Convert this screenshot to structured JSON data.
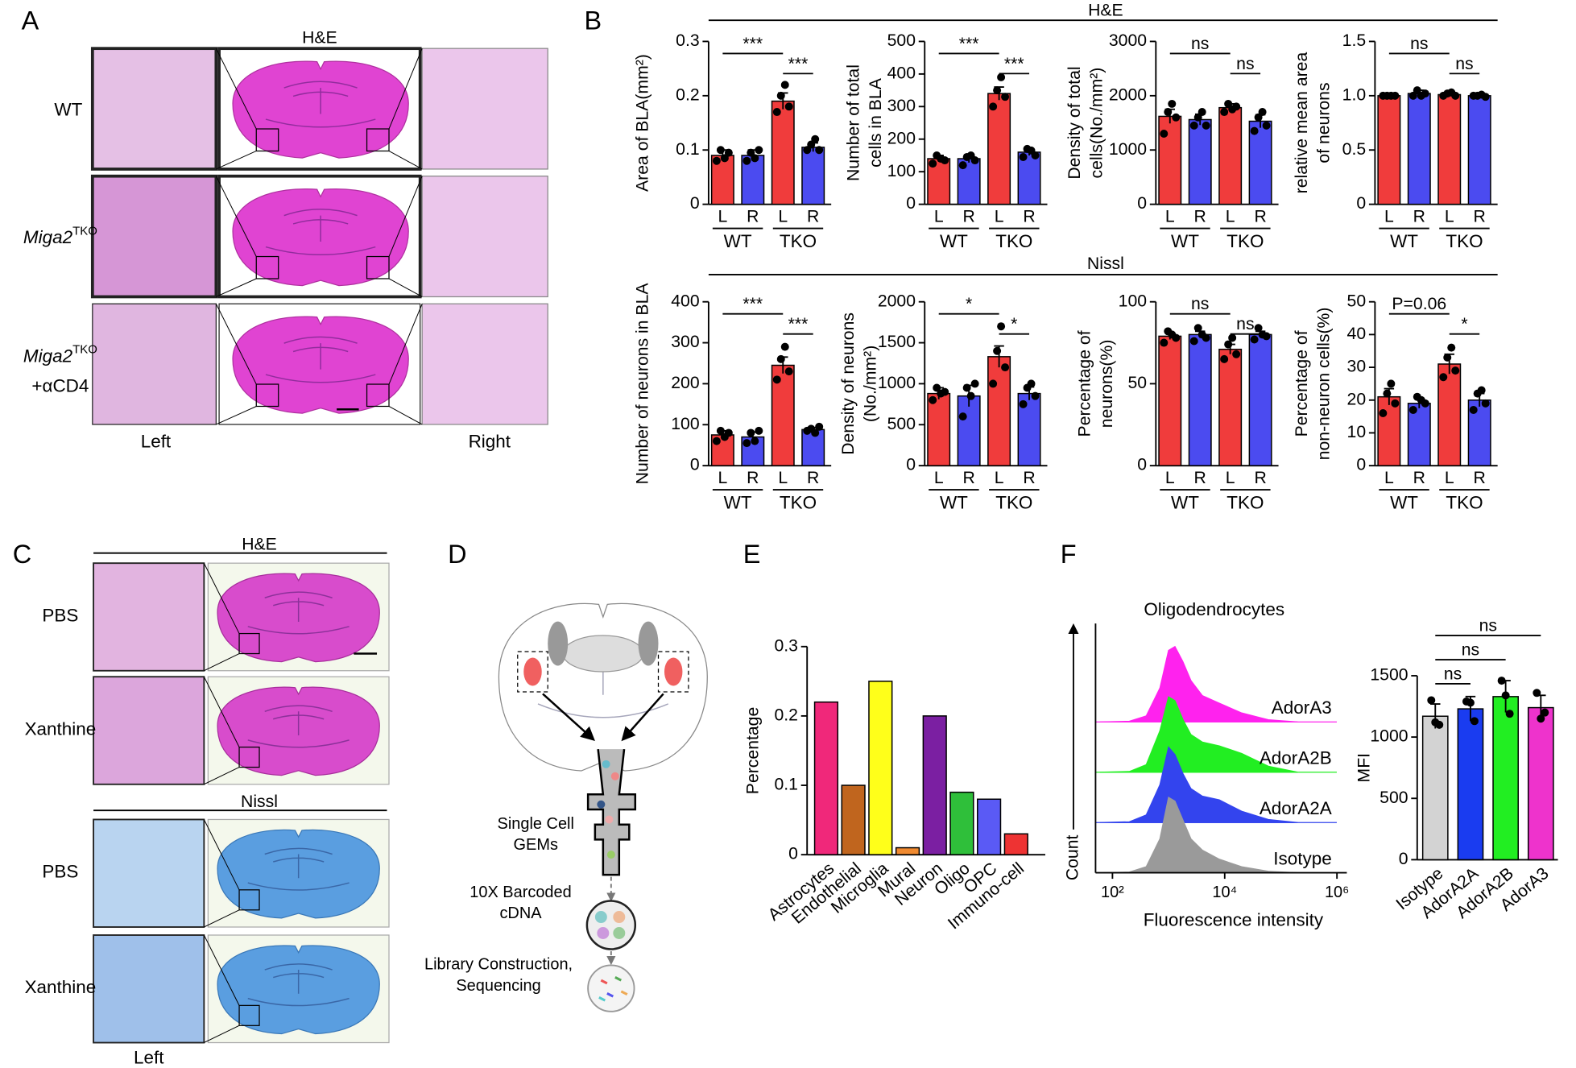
{
  "figure": {
    "panel_labels": [
      "A",
      "B",
      "C",
      "D",
      "E",
      "F"
    ],
    "A": {
      "title": "H&E",
      "rows": [
        {
          "label": "WT"
        },
        {
          "label": "Miga2",
          "sup": "TKO"
        },
        {
          "label": "Miga2",
          "sup": "TKO",
          "line2": "+αCD4"
        }
      ],
      "columns": [
        "Left",
        "Right"
      ]
    },
    "B": {
      "headers": [
        "H&E",
        "Nissl"
      ]
    },
    "C": {
      "sections": [
        {
          "title": "H&E",
          "rows": [
            "PBS",
            "Xanthine"
          ]
        },
        {
          "title": "Nissl",
          "rows": [
            "PBS",
            "Xanthine"
          ]
        }
      ],
      "column": "Left"
    },
    "D": {
      "steps": [
        [
          "Single Cell",
          "GEMs"
        ],
        [
          "10X Barcoded",
          "cDNA"
        ],
        [
          "Library Construction,",
          "Sequencing"
        ]
      ]
    }
  },
  "chart_data": [
    {
      "type": "bar",
      "ylabel": [
        "Area of BLA(mm²)"
      ],
      "categories": [
        "L",
        "R",
        "L",
        "R"
      ],
      "groups": [
        "WT",
        "TKO"
      ],
      "colors": [
        "#f03c3c",
        "#4b4bf0",
        "#f03c3c",
        "#4b4bf0"
      ],
      "values": [
        0.09,
        0.09,
        0.19,
        0.105
      ],
      "errors": [
        0.01,
        0.01,
        0.015,
        0.008
      ],
      "points": [
        [
          0.08,
          0.1,
          0.085,
          0.095
        ],
        [
          0.08,
          0.095,
          0.085,
          0.1
        ],
        [
          0.17,
          0.2,
          0.22,
          0.18
        ],
        [
          0.1,
          0.11,
          0.12,
          0.1
        ]
      ],
      "ylim": [
        0,
        0.3
      ],
      "yticks": [
        0,
        0.1,
        0.2,
        0.3
      ],
      "annotations": [
        "***",
        "***"
      ]
    },
    {
      "type": "bar",
      "ylabel": [
        "Number of total",
        "cells in BLA"
      ],
      "categories": [
        "L",
        "R",
        "L",
        "R"
      ],
      "groups": [
        "WT",
        "TKO"
      ],
      "colors": [
        "#f03c3c",
        "#4b4bf0",
        "#f03c3c",
        "#4b4bf0"
      ],
      "values": [
        140,
        140,
        340,
        160
      ],
      "errors": [
        10,
        12,
        20,
        10
      ],
      "points": [
        [
          125,
          150,
          140,
          135
        ],
        [
          120,
          145,
          150,
          135
        ],
        [
          300,
          350,
          390,
          330
        ],
        [
          145,
          170,
          165,
          150
        ]
      ],
      "ylim": [
        0,
        500
      ],
      "yticks": [
        0,
        100,
        200,
        300,
        400,
        500
      ],
      "annotations": [
        "***",
        "***"
      ]
    },
    {
      "type": "bar",
      "ylabel": [
        "Density of total",
        "cells(No./mm²)"
      ],
      "categories": [
        "L",
        "R",
        "L",
        "R"
      ],
      "groups": [
        "WT",
        "TKO"
      ],
      "colors": [
        "#f03c3c",
        "#4b4bf0",
        "#f03c3c",
        "#4b4bf0"
      ],
      "values": [
        1620,
        1560,
        1780,
        1530
      ],
      "errors": [
        130,
        100,
        70,
        120
      ],
      "points": [
        [
          1300,
          1700,
          1850,
          1600
        ],
        [
          1450,
          1600,
          1700,
          1450
        ],
        [
          1700,
          1850,
          1750,
          1800
        ],
        [
          1350,
          1600,
          1700,
          1450
        ]
      ],
      "ylim": [
        0,
        3000
      ],
      "yticks": [
        0,
        1000,
        2000,
        3000
      ],
      "annotations": [
        "ns",
        "ns"
      ]
    },
    {
      "type": "bar",
      "ylabel": [
        "relative mean area",
        "of neurons"
      ],
      "categories": [
        "L",
        "R",
        "L",
        "R"
      ],
      "groups": [
        "WT",
        "TKO"
      ],
      "colors": [
        "#f03c3c",
        "#4b4bf0",
        "#f03c3c",
        "#4b4bf0"
      ],
      "values": [
        1,
        1.02,
        1.01,
        1
      ],
      "errors": [
        0.01,
        0.03,
        0.02,
        0.01
      ],
      "points": [
        [
          1,
          1,
          1,
          1
        ],
        [
          1,
          1.05,
          1,
          1.02
        ],
        [
          1,
          1.02,
          1.03,
          1
        ],
        [
          1,
          1,
          1.01,
          0.99
        ]
      ],
      "ylim": [
        0,
        1.5
      ],
      "yticks": [
        0,
        0.5,
        {
          "value": 1,
          "label": "1.0"
        },
        1.5
      ],
      "annotations": [
        "ns",
        "ns"
      ]
    },
    {
      "type": "bar",
      "ylabel": [
        "Number of neurons in BLA"
      ],
      "categories": [
        "L",
        "R",
        "L",
        "R"
      ],
      "groups": [
        "WT",
        "TKO"
      ],
      "colors": [
        "#f03c3c",
        "#4b4bf0",
        "#f03c3c",
        "#4b4bf0"
      ],
      "values": [
        75,
        70,
        245,
        88
      ],
      "errors": [
        10,
        12,
        20,
        5
      ],
      "points": [
        [
          60,
          85,
          70,
          80
        ],
        [
          55,
          80,
          60,
          85
        ],
        [
          210,
          260,
          290,
          230
        ],
        [
          85,
          90,
          80,
          95
        ]
      ],
      "ylim": [
        0,
        400
      ],
      "yticks": [
        0,
        100,
        200,
        300,
        400
      ],
      "annotations": [
        "***",
        "***"
      ]
    },
    {
      "type": "bar",
      "ylabel": [
        "Density of neurons",
        "(No./mm²)"
      ],
      "categories": [
        "L",
        "R",
        "L",
        "R"
      ],
      "groups": [
        "WT",
        "TKO"
      ],
      "colors": [
        "#f03c3c",
        "#4b4bf0",
        "#f03c3c",
        "#4b4bf0"
      ],
      "values": [
        880,
        850,
        1330,
        880
      ],
      "errors": [
        70,
        130,
        130,
        80
      ],
      "points": [
        [
          800,
          950,
          880,
          900
        ],
        [
          600,
          950,
          850,
          1000
        ],
        [
          1000,
          1400,
          1700,
          1200
        ],
        [
          750,
          950,
          1000,
          850
        ]
      ],
      "ylim": [
        0,
        2000
      ],
      "yticks": [
        0,
        500,
        1000,
        1500,
        2000
      ],
      "annotations": [
        "*",
        "*"
      ]
    },
    {
      "type": "bar",
      "ylabel": [
        "Percentage of",
        "neurons(%)"
      ],
      "categories": [
        "L",
        "R",
        "L",
        "R"
      ],
      "groups": [
        "WT",
        "TKO"
      ],
      "colors": [
        "#f03c3c",
        "#4b4bf0",
        "#f03c3c",
        "#4b4bf0"
      ],
      "values": [
        79,
        80,
        71,
        80
      ],
      "errors": [
        2,
        2,
        3,
        2
      ],
      "points": [
        [
          75,
          82,
          80,
          78
        ],
        [
          76,
          84,
          80,
          78
        ],
        [
          65,
          74,
          78,
          68
        ],
        [
          77,
          84,
          80,
          79
        ]
      ],
      "ylim": [
        0,
        100
      ],
      "yticks": [
        0,
        50,
        100
      ],
      "annotations": [
        "ns",
        "ns"
      ]
    },
    {
      "type": "bar",
      "ylabel": [
        "Percentage of",
        "non-neuron cells(%)"
      ],
      "categories": [
        "L",
        "R",
        "L",
        "R"
      ],
      "groups": [
        "WT",
        "TKO"
      ],
      "colors": [
        "#f03c3c",
        "#4b4bf0",
        "#f03c3c",
        "#4b4bf0"
      ],
      "values": [
        21,
        19,
        31,
        20
      ],
      "errors": [
        2.5,
        1.5,
        3,
        2
      ],
      "points": [
        [
          16,
          22,
          25,
          19
        ],
        [
          17,
          21,
          20,
          19
        ],
        [
          27,
          33,
          36,
          29
        ],
        [
          17,
          22,
          23,
          19
        ]
      ],
      "ylim": [
        0,
        50
      ],
      "yticks": [
        0,
        10,
        20,
        30,
        40,
        50
      ],
      "annotations": [
        "P=0.06",
        "*"
      ]
    },
    {
      "type": "bar",
      "ylabel": [
        "Percentage"
      ],
      "categories": [
        "Astrocytes",
        "Endothelial",
        "Microglia",
        "Mural",
        "Neuron",
        "Oligo",
        "OPC",
        "Immuno-cell"
      ],
      "colors": [
        "#f0287a",
        "#c0651e",
        "#ffff1a",
        "#f08a30",
        "#7b1fa2",
        "#2fbf3a",
        "#5a5af5",
        "#ee3333"
      ],
      "values": [
        0.22,
        0.1,
        0.25,
        0.01,
        0.2,
        0.09,
        0.08,
        0.03
      ],
      "ylim": [
        0,
        0.3
      ],
      "yticks": [
        0,
        0.1,
        0.2,
        0.3
      ]
    },
    {
      "type": "area",
      "title": "Oligodendrocytes",
      "xlabel": "Fluorescence intensity",
      "ylabel": "Count",
      "x": [
        60,
        200,
        400,
        700,
        1000,
        1300,
        1800,
        2500,
        4000,
        8000,
        20000,
        60000,
        200000
      ],
      "xscale": "log",
      "xlim": [
        50,
        1500000
      ],
      "xticks": [
        {
          "value": 100,
          "label": "10²"
        },
        {
          "value": 10000,
          "label": "10⁴"
        },
        {
          "value": 1000000,
          "label": "10⁶"
        }
      ],
      "ylim": [
        0,
        100
      ],
      "series": [
        {
          "name": "Isotype",
          "color": "#9a9a9a",
          "values": [
            0,
            1,
            8,
            45,
            100,
            95,
            70,
            45,
            30,
            18,
            8,
            2,
            0
          ]
        },
        {
          "name": "AdorA2A",
          "color": "#3344ee",
          "values": [
            0,
            1,
            10,
            50,
            100,
            90,
            65,
            45,
            35,
            30,
            15,
            4,
            0
          ]
        },
        {
          "name": "AdorA2B",
          "color": "#22ee22",
          "values": [
            0,
            1,
            10,
            55,
            100,
            95,
            70,
            50,
            40,
            35,
            25,
            8,
            0
          ]
        },
        {
          "name": "AdorA3",
          "color": "#ff22ee",
          "values": [
            0,
            1,
            8,
            45,
            95,
            100,
            80,
            55,
            35,
            25,
            12,
            3,
            0
          ]
        }
      ]
    },
    {
      "type": "bar",
      "ylabel": [
        "MFI"
      ],
      "categories": [
        "Isotype",
        "AdorA2A",
        "AdorA2B",
        "AdorA3"
      ],
      "colors": [
        "#d3d3d3",
        "#1a3cf0",
        "#22ee22",
        "#ee33cc"
      ],
      "values": [
        1170,
        1230,
        1330,
        1240
      ],
      "errors": [
        100,
        100,
        130,
        100
      ],
      "points": [
        [
          1300,
          1120,
          1100
        ],
        [
          1290,
          1280,
          1130
        ],
        [
          1460,
          1340,
          1190
        ],
        [
          1360,
          1150,
          1200
        ]
      ],
      "ylim": [
        0,
        1500
      ],
      "yticks": [
        0,
        500,
        1000,
        1500
      ],
      "annotations": [
        "ns",
        "ns",
        "ns"
      ]
    }
  ]
}
